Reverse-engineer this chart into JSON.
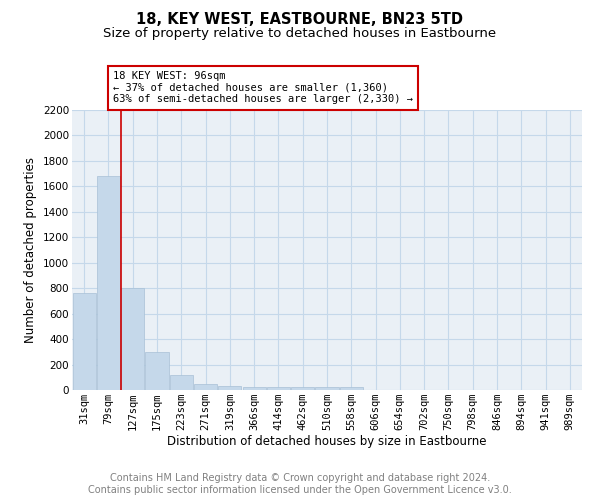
{
  "title": "18, KEY WEST, EASTBOURNE, BN23 5TD",
  "subtitle": "Size of property relative to detached houses in Eastbourne",
  "xlabel": "Distribution of detached houses by size in Eastbourne",
  "ylabel": "Number of detached properties",
  "categories": [
    "31sqm",
    "79sqm",
    "127sqm",
    "175sqm",
    "223sqm",
    "271sqm",
    "319sqm",
    "366sqm",
    "414sqm",
    "462sqm",
    "510sqm",
    "558sqm",
    "606sqm",
    "654sqm",
    "702sqm",
    "750sqm",
    "798sqm",
    "846sqm",
    "894sqm",
    "941sqm",
    "989sqm"
  ],
  "values": [
    760,
    1680,
    800,
    295,
    115,
    45,
    30,
    25,
    20,
    20,
    20,
    20,
    0,
    0,
    0,
    0,
    0,
    0,
    0,
    0,
    0
  ],
  "bar_color": "#c5d8ea",
  "bar_edge_color": "#a8c0d6",
  "property_line_x": 1.5,
  "property_size": "96sqm",
  "annotation_text": "18 KEY WEST: 96sqm\n← 37% of detached houses are smaller (1,360)\n63% of semi-detached houses are larger (2,330) →",
  "annotation_box_color": "#cc0000",
  "ylim": [
    0,
    2200
  ],
  "grid_color": "#c5d8ea",
  "background_color": "#eaf0f6",
  "footer_text": "Contains HM Land Registry data © Crown copyright and database right 2024.\nContains public sector information licensed under the Open Government Licence v3.0.",
  "title_fontsize": 10.5,
  "subtitle_fontsize": 9.5,
  "xlabel_fontsize": 8.5,
  "ylabel_fontsize": 8.5,
  "tick_fontsize": 7.5,
  "footer_fontsize": 7
}
